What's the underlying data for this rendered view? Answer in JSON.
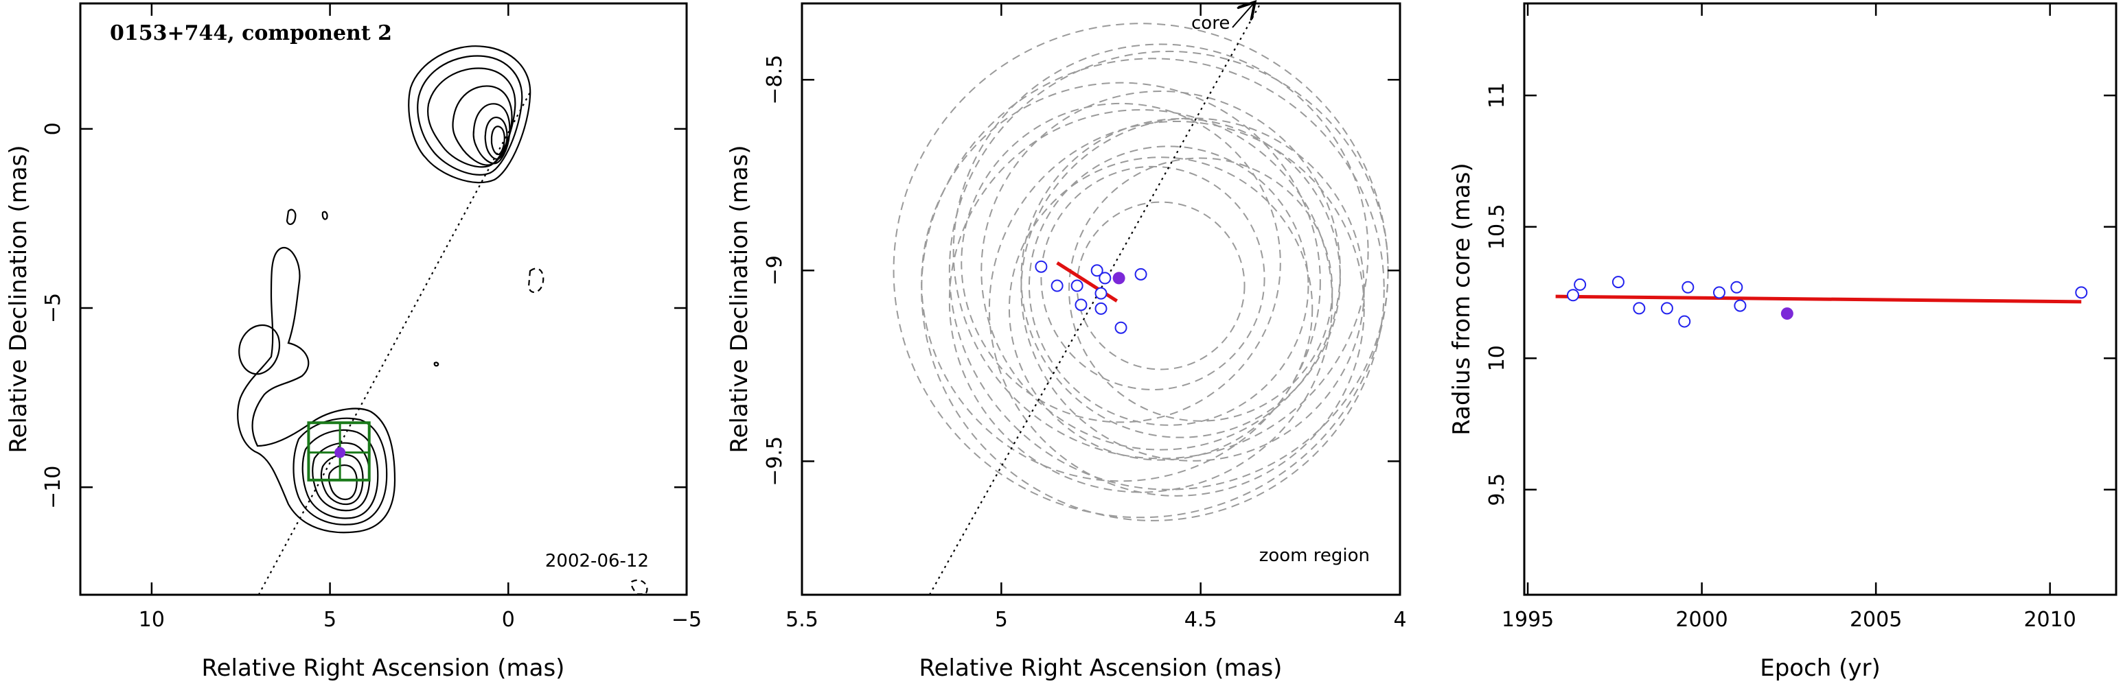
{
  "chart_data": [
    {
      "type": "scatter",
      "panel": "contour-map",
      "title": "0153+744, component 2",
      "annotation": "2002-06-12",
      "xlabel": "Relative Right Ascension (mas)",
      "ylabel": "Relative Declination (mas)",
      "xlim": [
        12,
        -5
      ],
      "ylim": [
        -13,
        3.5
      ],
      "xticks": [
        10,
        5,
        0,
        -5
      ],
      "yticks": [
        0,
        -5,
        -10
      ],
      "component": {
        "x": 4.72,
        "y": -9.03
      },
      "core": {
        "x": 0,
        "y": 0
      },
      "jet_axis": [
        [
          7.0,
          -13.0
        ],
        [
          -0.6,
          1.0
        ]
      ],
      "box": {
        "x": [
          5.6,
          3.9
        ],
        "y": [
          -9.8,
          -8.2
        ]
      },
      "colors": {
        "component": "#7b28d8",
        "box": "#1a7a1a"
      }
    },
    {
      "type": "scatter",
      "panel": "zoom",
      "annotation": "zoom region",
      "arrow_label": "core",
      "xlabel": "Relative Right Ascension (mas)",
      "ylabel": "Relative Declination (mas)",
      "xlim": [
        5.5,
        4.0
      ],
      "ylim": [
        -9.85,
        -8.3
      ],
      "xticks": [
        "5.5",
        "5",
        "4.5",
        "4"
      ],
      "yticks": [
        "-8.5",
        "-9",
        "-9.5"
      ],
      "series": [
        {
          "marker": "open-circle",
          "color": "#2222ee",
          "points": [
            [
              4.9,
              -8.99
            ],
            [
              4.86,
              -9.04
            ],
            [
              4.81,
              -9.04
            ],
            [
              4.76,
              -9.0
            ],
            [
              4.74,
              -9.02
            ],
            [
              4.75,
              -9.06
            ],
            [
              4.65,
              -9.01
            ],
            [
              4.8,
              -9.09
            ],
            [
              4.75,
              -9.1
            ],
            [
              4.7,
              -9.15
            ]
          ]
        },
        {
          "marker": "filled-circle",
          "color": "#7b28d8",
          "points": [
            [
              4.705,
              -9.02
            ]
          ]
        }
      ],
      "fit_line": {
        "x": [
          4.86,
          4.71
        ],
        "y": [
          -8.98,
          -9.08
        ],
        "color": "#e01010"
      },
      "error_circles": [
        {
          "x": 4.6,
          "y": -9.0,
          "r": 0.45
        },
        {
          "x": 4.62,
          "y": -9.05,
          "r": 0.58
        },
        {
          "x": 4.55,
          "y": -9.02,
          "r": 0.4
        },
        {
          "x": 4.7,
          "y": -9.03,
          "r": 0.5
        },
        {
          "x": 4.65,
          "y": -9.0,
          "r": 0.62
        },
        {
          "x": 4.58,
          "y": -9.04,
          "r": 0.35
        },
        {
          "x": 4.6,
          "y": -8.95,
          "r": 0.52
        },
        {
          "x": 4.52,
          "y": -9.05,
          "r": 0.43
        },
        {
          "x": 4.65,
          "y": -9.08,
          "r": 0.48
        },
        {
          "x": 4.7,
          "y": -8.98,
          "r": 0.4
        },
        {
          "x": 4.56,
          "y": -9.1,
          "r": 0.47
        },
        {
          "x": 4.62,
          "y": -9.02,
          "r": 0.28
        },
        {
          "x": 4.58,
          "y": -9.0,
          "r": 0.55
        },
        {
          "x": 4.6,
          "y": -9.1,
          "r": 0.38
        },
        {
          "x": 4.5,
          "y": -9.05,
          "r": 0.33
        },
        {
          "x": 4.6,
          "y": -9.04,
          "r": 0.21
        }
      ],
      "jet_axis": [
        [
          5.18,
          -9.85
        ],
        [
          4.35,
          -8.3
        ]
      ],
      "colors": {
        "circles": "#9a9a9a"
      }
    },
    {
      "type": "scatter",
      "panel": "radius-vs-epoch",
      "xlabel": "Epoch (yr)",
      "ylabel": "Radius from core (mas)",
      "xlim": [
        1994.9,
        2011.9
      ],
      "ylim": [
        9.1,
        11.35
      ],
      "xticks": [
        1995,
        2000,
        2005,
        2010
      ],
      "yticks": [
        "9.5",
        "10",
        "10.5",
        "11"
      ],
      "series": [
        {
          "marker": "open-circle",
          "color": "#2222ee",
          "points": [
            [
              1996.3,
              10.24
            ],
            [
              1996.5,
              10.28
            ],
            [
              1997.6,
              10.29
            ],
            [
              1998.2,
              10.19
            ],
            [
              1999.0,
              10.19
            ],
            [
              1999.5,
              10.14
            ],
            [
              1999.6,
              10.27
            ],
            [
              2000.5,
              10.25
            ],
            [
              2001.0,
              10.27
            ],
            [
              2001.1,
              10.2
            ],
            [
              2010.9,
              10.25
            ]
          ]
        },
        {
          "marker": "filled-circle",
          "color": "#7b28d8",
          "points": [
            [
              2002.45,
              10.17
            ]
          ]
        }
      ],
      "fit_line": {
        "x": [
          1995.8,
          2010.9
        ],
        "y": [
          10.235,
          10.215
        ],
        "color": "#e01010"
      }
    }
  ]
}
